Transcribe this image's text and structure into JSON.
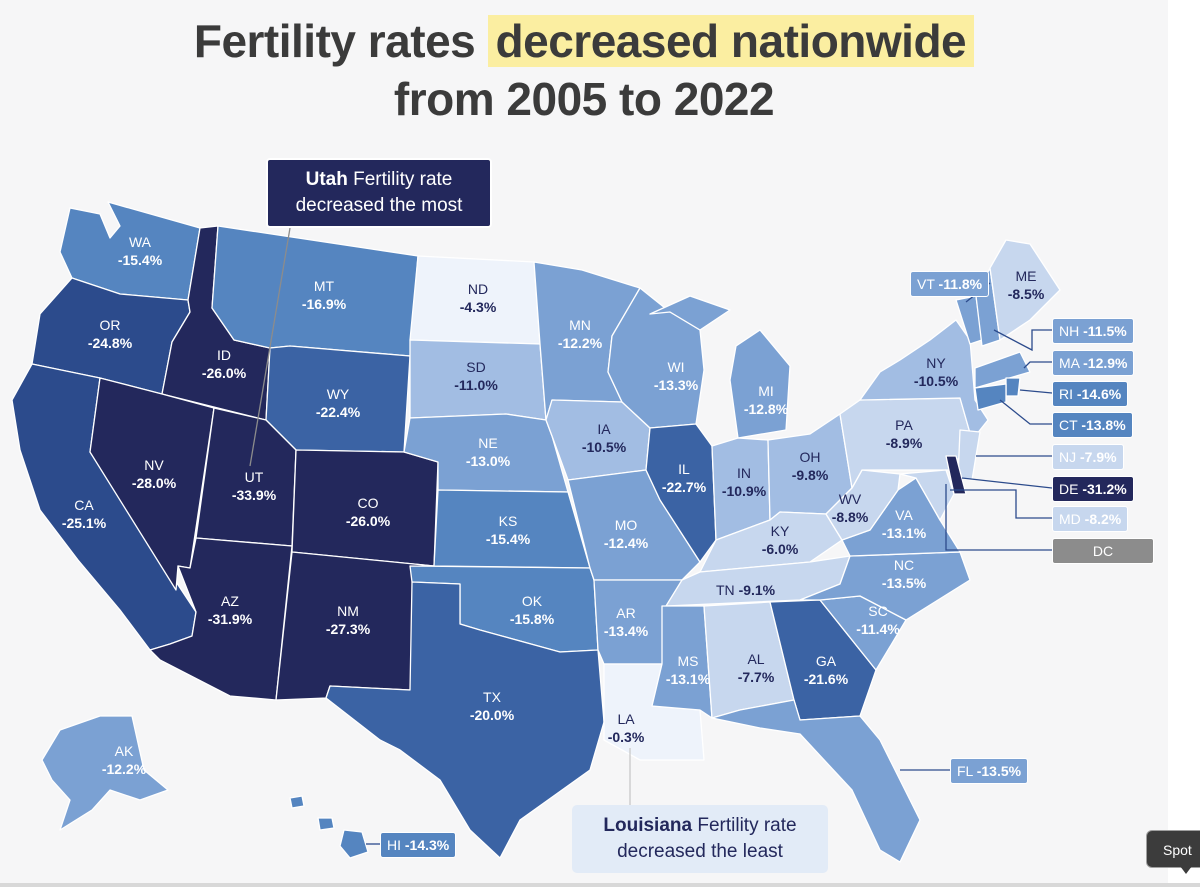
{
  "title": {
    "line1_prefix": "Fertility rates ",
    "line1_highlight": "decreased nationwide",
    "line2": "from 2005 to 2022"
  },
  "colors": {
    "highlight": "#fbeea1",
    "scale": [
      "#eef3fb",
      "#c7d7ee",
      "#a2bde3",
      "#7ba1d3",
      "#5585c0",
      "#3b63a4",
      "#2c4b8c",
      "#23285c"
    ],
    "grey_label": "#8c8c8c"
  },
  "states": {
    "WA": {
      "abbr": "WA",
      "change": "-15.4%",
      "value": -15.4
    },
    "OR": {
      "abbr": "OR",
      "change": "-24.8%",
      "value": -24.8
    },
    "CA": {
      "abbr": "CA",
      "change": "-25.1%",
      "value": -25.1
    },
    "ID": {
      "abbr": "ID",
      "change": "-26.0%",
      "value": -26.0
    },
    "NV": {
      "abbr": "NV",
      "change": "-28.0%",
      "value": -28.0
    },
    "MT": {
      "abbr": "MT",
      "change": "-16.9%",
      "value": -16.9
    },
    "WY": {
      "abbr": "WY",
      "change": "-22.4%",
      "value": -22.4
    },
    "UT": {
      "abbr": "UT",
      "change": "-33.9%",
      "value": -33.9
    },
    "AZ": {
      "abbr": "AZ",
      "change": "-31.9%",
      "value": -31.9
    },
    "CO": {
      "abbr": "CO",
      "change": "-26.0%",
      "value": -26.0
    },
    "NM": {
      "abbr": "NM",
      "change": "-27.3%",
      "value": -27.3
    },
    "ND": {
      "abbr": "ND",
      "change": "-4.3%",
      "value": -4.3
    },
    "SD": {
      "abbr": "SD",
      "change": "-11.0%",
      "value": -11.0
    },
    "NE": {
      "abbr": "NE",
      "change": "-13.0%",
      "value": -13.0
    },
    "KS": {
      "abbr": "KS",
      "change": "-15.4%",
      "value": -15.4
    },
    "OK": {
      "abbr": "OK",
      "change": "-15.8%",
      "value": -15.8
    },
    "TX": {
      "abbr": "TX",
      "change": "-20.0%",
      "value": -20.0
    },
    "MN": {
      "abbr": "MN",
      "change": "-12.2%",
      "value": -12.2
    },
    "IA": {
      "abbr": "IA",
      "change": "-10.5%",
      "value": -10.5
    },
    "MO": {
      "abbr": "MO",
      "change": "-12.4%",
      "value": -12.4
    },
    "AR": {
      "abbr": "AR",
      "change": "-13.4%",
      "value": -13.4
    },
    "LA": {
      "abbr": "LA",
      "change": "-0.3%",
      "value": -0.3
    },
    "WI": {
      "abbr": "WI",
      "change": "-13.3%",
      "value": -13.3
    },
    "IL": {
      "abbr": "IL",
      "change": "-22.7%",
      "value": -22.7
    },
    "MI": {
      "abbr": "MI",
      "change": "-12.8%",
      "value": -12.8
    },
    "IN": {
      "abbr": "IN",
      "change": "-10.9%",
      "value": -10.9
    },
    "OH": {
      "abbr": "OH",
      "change": "-9.8%",
      "value": -9.8
    },
    "KY": {
      "abbr": "KY",
      "change": "-6.0%",
      "value": -6.0
    },
    "TN": {
      "abbr": "TN",
      "change": "-9.1%",
      "value": -9.1
    },
    "MS": {
      "abbr": "MS",
      "change": "-13.1%",
      "value": -13.1
    },
    "AL": {
      "abbr": "AL",
      "change": "-7.7%",
      "value": -7.7
    },
    "GA": {
      "abbr": "GA",
      "change": "-21.6%",
      "value": -21.6
    },
    "FL": {
      "abbr": "FL",
      "change": "-13.5%",
      "value": -13.5
    },
    "SC": {
      "abbr": "SC",
      "change": "-11.4%",
      "value": -11.4
    },
    "NC": {
      "abbr": "NC",
      "change": "-13.5%",
      "value": -13.5
    },
    "VA": {
      "abbr": "VA",
      "change": "-13.1%",
      "value": -13.1
    },
    "WV": {
      "abbr": "WV",
      "change": "-8.8%",
      "value": -8.8
    },
    "PA": {
      "abbr": "PA",
      "change": "-8.9%",
      "value": -8.9
    },
    "NY": {
      "abbr": "NY",
      "change": "-10.5%",
      "value": -10.5
    },
    "VT": {
      "abbr": "VT",
      "change": "-11.8%",
      "value": -11.8
    },
    "ME": {
      "abbr": "ME",
      "change": "-8.5%",
      "value": -8.5
    },
    "NH": {
      "abbr": "NH",
      "change": "-11.5%",
      "value": -11.5
    },
    "MA": {
      "abbr": "MA",
      "change": "-12.9%",
      "value": -12.9
    },
    "RI": {
      "abbr": "RI",
      "change": "-14.6%",
      "value": -14.6
    },
    "CT": {
      "abbr": "CT",
      "change": "-13.8%",
      "value": -13.8
    },
    "NJ": {
      "abbr": "NJ",
      "change": "-7.9%",
      "value": -7.9
    },
    "DE": {
      "abbr": "DE",
      "change": "-31.2%",
      "value": -31.2
    },
    "MD": {
      "abbr": "MD",
      "change": "-8.2%",
      "value": -8.2
    },
    "DC": {
      "abbr": "DC",
      "change": "",
      "value": null
    },
    "AK": {
      "abbr": "AK",
      "change": "-12.2%",
      "value": -12.2
    },
    "HI": {
      "abbr": "HI",
      "change": "-14.3%",
      "value": -14.3
    }
  },
  "callouts": {
    "utah": {
      "bold": "Utah",
      "rest": " Fertility rate",
      "line2": "decreased the most"
    },
    "louisiana": {
      "bold": "Louisiana",
      "rest": " Fertility rate",
      "line2": "decreased the least"
    }
  },
  "overlay": {
    "spotlight_label": "Spot"
  }
}
